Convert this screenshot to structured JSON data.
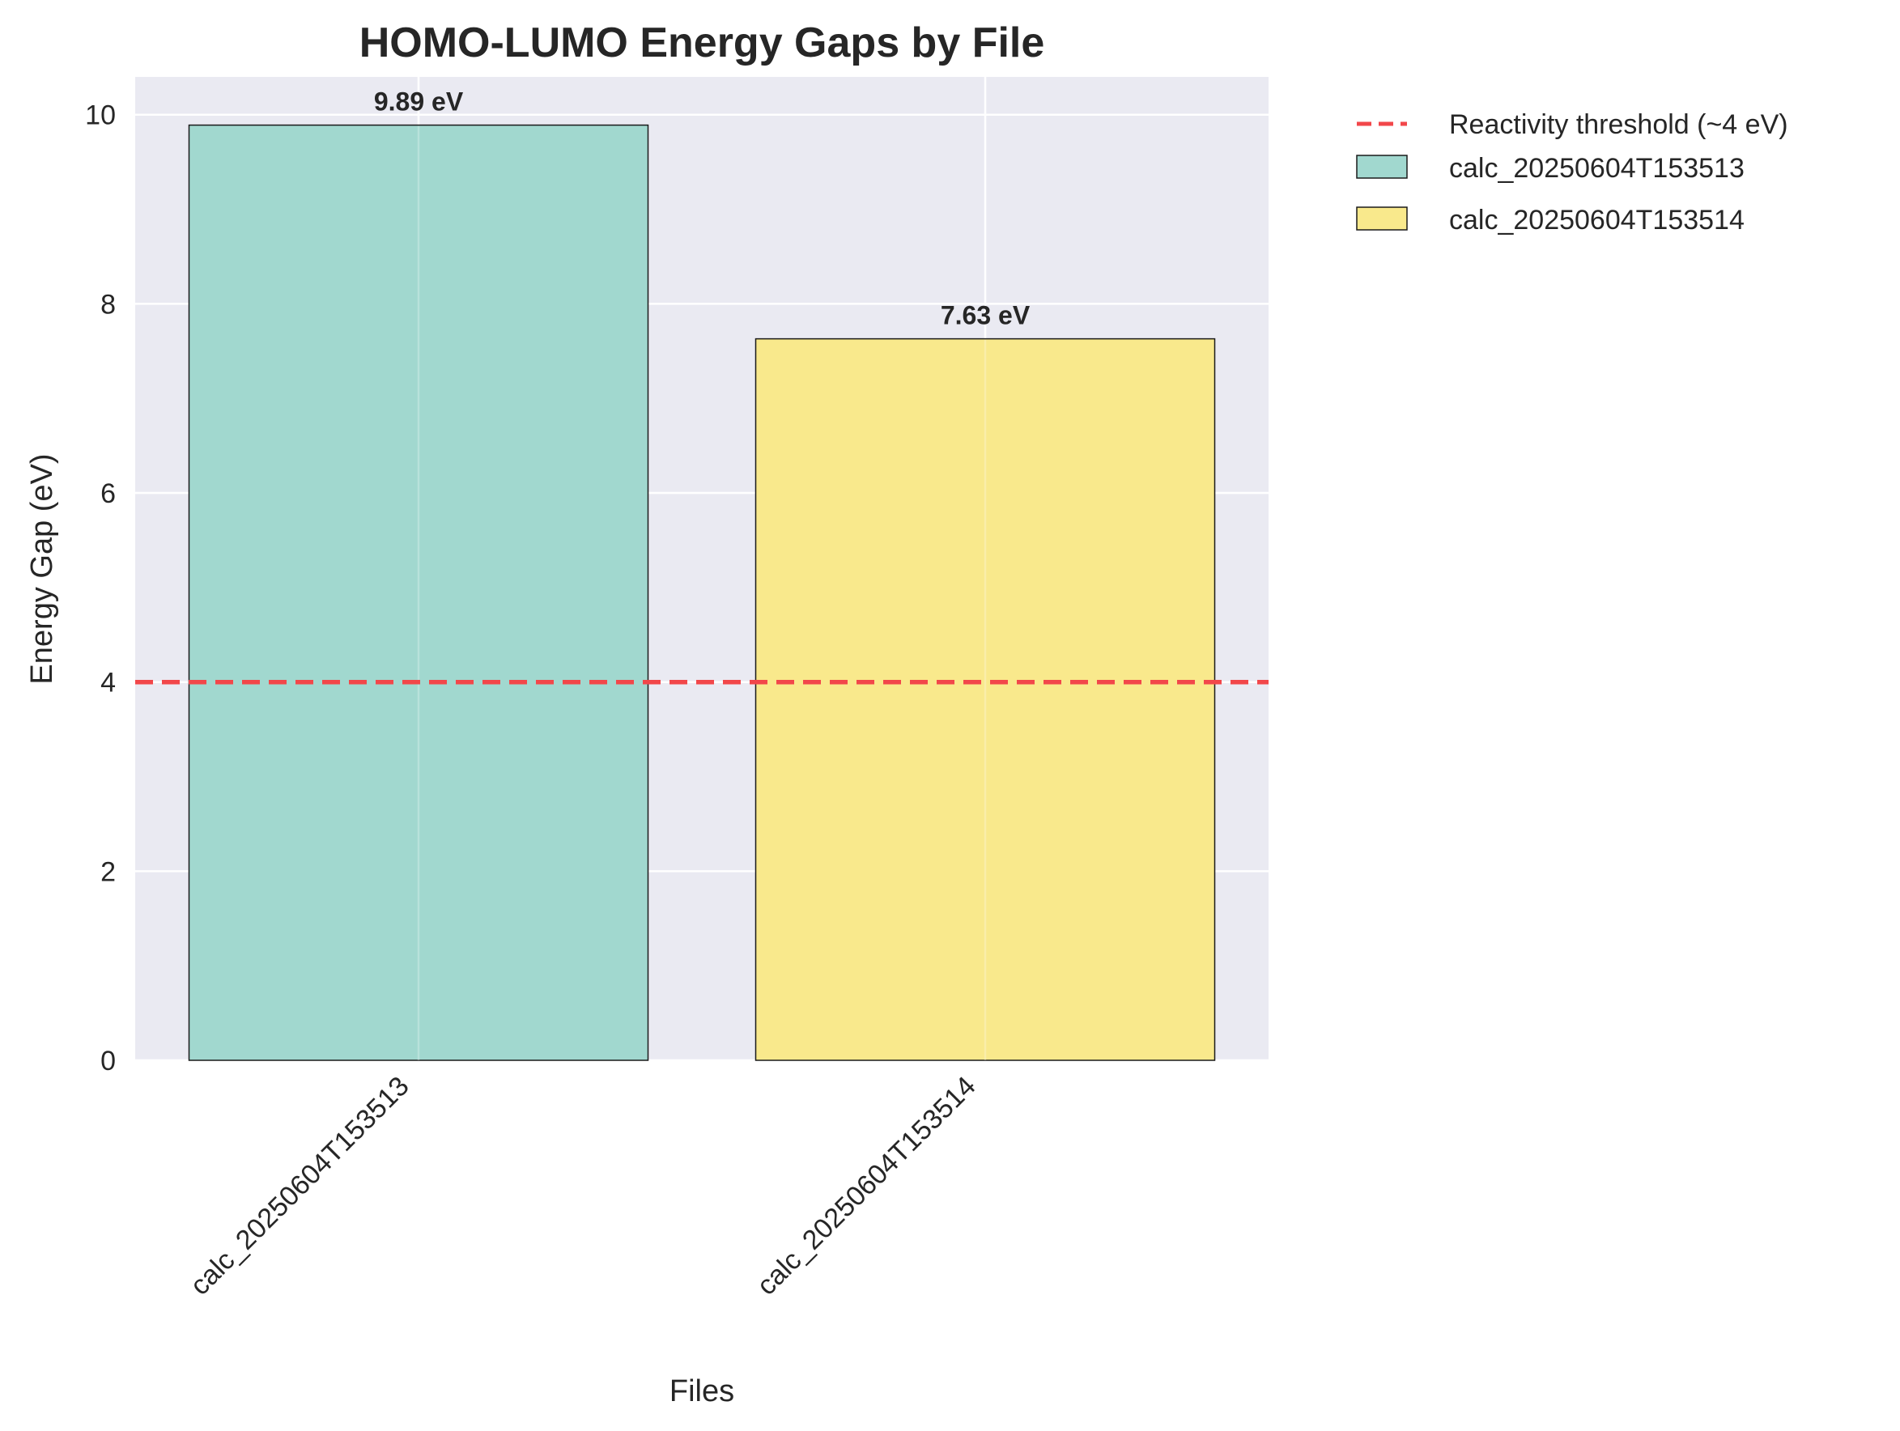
{
  "chart_data": {
    "type": "bar",
    "title": "HOMO-LUMO Energy Gaps by File",
    "xlabel": "Files",
    "ylabel": "Energy Gap (eV)",
    "categories": [
      "calc_20250604T153513",
      "calc_20250604T153514"
    ],
    "values": [
      9.89,
      7.63
    ],
    "data_labels": [
      "9.89 eV",
      "7.63 eV"
    ],
    "bar_colors": [
      "#a1d8cf",
      "#f9e98c"
    ],
    "ylim": [
      0,
      10.4
    ],
    "yticks": [
      0,
      2,
      4,
      6,
      8,
      10
    ],
    "grid": true,
    "reference_line": {
      "label": "Reactivity threshold (~4 eV)",
      "value": 4,
      "color": "#f2474a",
      "style": "dashed"
    },
    "legend": {
      "placement": "outside-top-right",
      "entries": [
        "Reactivity threshold (~4 eV)",
        "calc_20250604T153513",
        "calc_20250604T153514"
      ]
    },
    "colors": {
      "plot_background": "#eaeaf2",
      "grid": "#ffffff",
      "bar_edge": "#1a1a1a"
    }
  }
}
